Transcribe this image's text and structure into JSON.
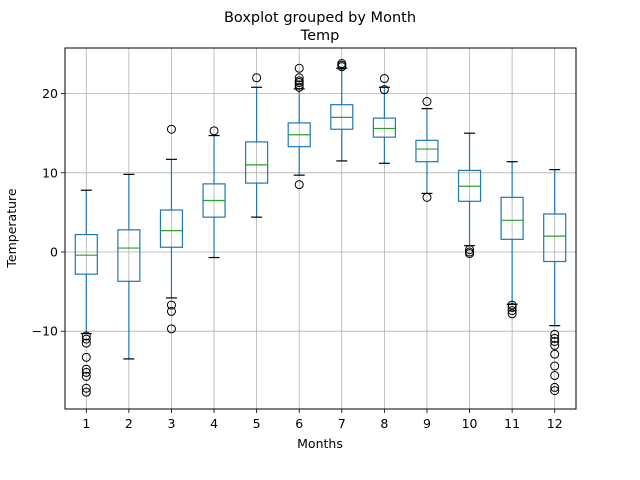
{
  "chart_data": {
    "type": "boxplot",
    "title": "Boxplot grouped by Month",
    "subtitle": "Temp",
    "xlabel": "Months",
    "ylabel": "Temperature",
    "ylim": [
      -20,
      26
    ],
    "yticks": [
      -10,
      0,
      10,
      20
    ],
    "grid": true,
    "colors": {
      "box": "#1f77b4",
      "median": "#2ca02c",
      "whisker": "#1f77b4",
      "flier": "#000000",
      "grid": "#b0b0b0"
    },
    "categories": [
      "1",
      "2",
      "3",
      "4",
      "5",
      "6",
      "7",
      "8",
      "9",
      "10",
      "11",
      "12"
    ],
    "boxes": [
      {
        "label": "1",
        "whislo": -10.3,
        "q1": -2.8,
        "med": -0.4,
        "q3": 2.2,
        "whishi": 7.8,
        "fliers": [
          -10.6,
          -11.0,
          -11.5,
          -13.3,
          -14.8,
          -15.2,
          -15.7,
          -17.2,
          -17.7
        ]
      },
      {
        "label": "2",
        "whislo": -13.5,
        "q1": -3.7,
        "med": 0.5,
        "q3": 2.8,
        "whishi": 9.8,
        "fliers": []
      },
      {
        "label": "3",
        "whislo": -5.8,
        "q1": 0.6,
        "med": 2.7,
        "q3": 5.3,
        "whishi": 11.7,
        "fliers": [
          15.5,
          -6.7,
          -7.5,
          -9.7
        ]
      },
      {
        "label": "4",
        "whislo": -0.7,
        "q1": 4.4,
        "med": 6.5,
        "q3": 8.6,
        "whishi": 14.7,
        "fliers": [
          15.3
        ]
      },
      {
        "label": "5",
        "whislo": 4.4,
        "q1": 8.7,
        "med": 11.0,
        "q3": 13.9,
        "whishi": 20.8,
        "fliers": [
          22.0
        ]
      },
      {
        "label": "6",
        "whislo": 9.7,
        "q1": 13.3,
        "med": 14.8,
        "q3": 16.3,
        "whishi": 20.6,
        "fliers": [
          8.5,
          20.8,
          21.1,
          21.4,
          21.6,
          22.0,
          23.2
        ]
      },
      {
        "label": "7",
        "whislo": 11.5,
        "q1": 15.5,
        "med": 17.0,
        "q3": 18.6,
        "whishi": 23.2,
        "fliers": [
          23.4,
          23.6,
          23.8
        ]
      },
      {
        "label": "8",
        "whislo": 11.2,
        "q1": 14.5,
        "med": 15.6,
        "q3": 16.9,
        "whishi": 20.8,
        "fliers": [
          20.5,
          21.9
        ]
      },
      {
        "label": "9",
        "whislo": 7.4,
        "q1": 11.4,
        "med": 13.0,
        "q3": 14.1,
        "whishi": 18.1,
        "fliers": [
          19.0,
          6.9
        ]
      },
      {
        "label": "10",
        "whislo": 0.8,
        "q1": 6.4,
        "med": 8.3,
        "q3": 10.3,
        "whishi": 15.0,
        "fliers": [
          0.3,
          0.0,
          -0.2
        ]
      },
      {
        "label": "11",
        "whislo": -6.6,
        "q1": 1.6,
        "med": 4.0,
        "q3": 6.9,
        "whishi": 11.4,
        "fliers": [
          -6.7,
          -7.0,
          -7.4,
          -7.8
        ]
      },
      {
        "label": "12",
        "whislo": -9.3,
        "q1": -1.2,
        "med": 2.0,
        "q3": 4.8,
        "whishi": 10.4,
        "fliers": [
          -10.4,
          -10.9,
          -11.3,
          -11.8,
          -12.9,
          -14.4,
          -15.6,
          -17.1,
          -17.5
        ]
      }
    ]
  }
}
